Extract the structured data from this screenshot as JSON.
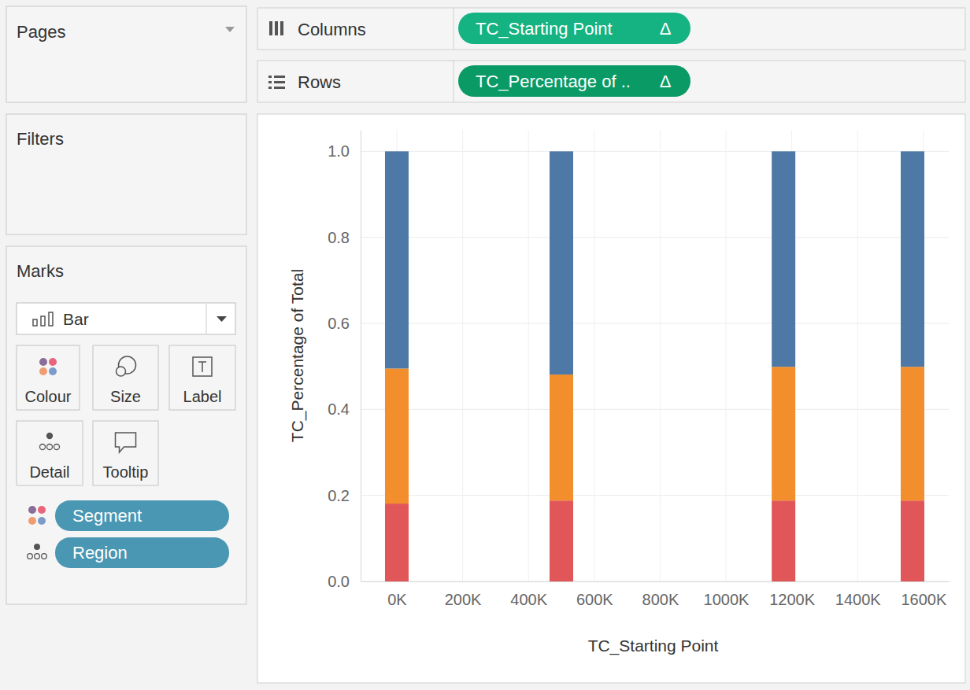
{
  "chart_data": {
    "type": "bar",
    "stacked": true,
    "grid": true,
    "x_label": "TC_Starting Point",
    "y_label": "TC_Percentage of Total",
    "x": [
      0,
      500000,
      1175000,
      1567000
    ],
    "series": [
      {
        "color": "#e15759",
        "values": [
          0.181,
          0.188,
          0.188,
          0.188
        ]
      },
      {
        "color": "#f28e2b",
        "values": [
          0.314,
          0.293,
          0.311,
          0.311
        ]
      },
      {
        "color": "#4e79a7",
        "values": [
          0.505,
          0.519,
          0.501,
          0.501
        ]
      }
    ],
    "xlim": [
      -110000,
      1677000
    ],
    "xticks": [
      {
        "value": 0,
        "label": "0K"
      },
      {
        "value": 200000,
        "label": "200K"
      },
      {
        "value": 400000,
        "label": "400K"
      },
      {
        "value": 600000,
        "label": "600K"
      },
      {
        "value": 800000,
        "label": "800K"
      },
      {
        "value": 1000000,
        "label": "1000K"
      },
      {
        "value": 1200000,
        "label": "1200K"
      },
      {
        "value": 1400000,
        "label": "1400K"
      },
      {
        "value": 1600000,
        "label": "1600K"
      }
    ],
    "ylim": [
      0,
      1.05
    ],
    "yticks": [
      {
        "value": 0,
        "label": "0.0"
      },
      0.2,
      0.4,
      0.6,
      0.8,
      {
        "value": 1,
        "label": "1.0"
      }
    ]
  },
  "ui": {
    "pages": "Pages",
    "filters": "Filters",
    "marks": "Marks",
    "mark_type": "Bar",
    "mark_buttons": [
      "Colour",
      "Size",
      "Label",
      "Detail",
      "Tooltip"
    ],
    "mark_fields": [
      "Segment",
      "Region"
    ],
    "columns_label": "Columns",
    "rows_label": "Rows",
    "columns_field": "TC_Starting Point",
    "columns_flag": "Δ",
    "rows_field": "TC_Percentage of ..",
    "rows_flag": "Δ"
  }
}
